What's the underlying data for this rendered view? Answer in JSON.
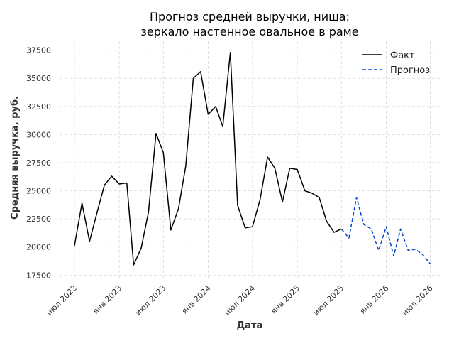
{
  "chart_data": {
    "type": "line",
    "title_lines": [
      "Прогноз средней выручки, ниша:",
      "зеркало настенное овальное в раме"
    ],
    "xlabel": "Дата",
    "ylabel": "Средняя выручка, руб.",
    "xlim": [
      "2022-05-01",
      "2026-08-15"
    ],
    "ylim": [
      17200,
      38300
    ],
    "x_ticks": [
      {
        "date": "2022-07-01",
        "label": "июл 2022"
      },
      {
        "date": "2023-01-01",
        "label": "янв 2023"
      },
      {
        "date": "2023-07-01",
        "label": "июл 2023"
      },
      {
        "date": "2024-01-01",
        "label": "янв 2024"
      },
      {
        "date": "2024-07-01",
        "label": "июл 2024"
      },
      {
        "date": "2025-01-01",
        "label": "янв 2025"
      },
      {
        "date": "2025-07-01",
        "label": "июл 2025"
      },
      {
        "date": "2026-01-01",
        "label": "янв 2026"
      },
      {
        "date": "2026-07-01",
        "label": "июл 2026"
      }
    ],
    "y_ticks": [
      17500,
      20000,
      22500,
      25000,
      27500,
      30000,
      32500,
      35000,
      37500
    ],
    "grid": true,
    "legend_position": "top-right",
    "series": [
      {
        "name": "Факт",
        "color": "#000000",
        "dash": "solid",
        "points": [
          [
            "2022-07-01",
            20100
          ],
          [
            "2022-08-01",
            23900
          ],
          [
            "2022-09-01",
            20500
          ],
          [
            "2022-10-01",
            23000
          ],
          [
            "2022-11-01",
            25500
          ],
          [
            "2022-12-01",
            26300
          ],
          [
            "2023-01-01",
            25600
          ],
          [
            "2023-02-01",
            25700
          ],
          [
            "2023-03-01",
            18400
          ],
          [
            "2023-04-01",
            19900
          ],
          [
            "2023-05-01",
            23100
          ],
          [
            "2023-06-01",
            30100
          ],
          [
            "2023-07-01",
            28400
          ],
          [
            "2023-08-01",
            21500
          ],
          [
            "2023-09-01",
            23400
          ],
          [
            "2023-10-01",
            27200
          ],
          [
            "2023-11-01",
            35000
          ],
          [
            "2023-12-01",
            35600
          ],
          [
            "2024-01-01",
            31800
          ],
          [
            "2024-02-01",
            32500
          ],
          [
            "2024-03-01",
            30700
          ],
          [
            "2024-04-01",
            37300
          ],
          [
            "2024-05-01",
            23700
          ],
          [
            "2024-06-01",
            21700
          ],
          [
            "2024-07-01",
            21800
          ],
          [
            "2024-08-01",
            24200
          ],
          [
            "2024-09-01",
            28000
          ],
          [
            "2024-10-01",
            27000
          ],
          [
            "2024-11-01",
            24000
          ],
          [
            "2024-12-01",
            27000
          ],
          [
            "2025-01-01",
            26900
          ],
          [
            "2025-02-01",
            25000
          ],
          [
            "2025-03-01",
            24800
          ],
          [
            "2025-04-01",
            24400
          ],
          [
            "2025-05-01",
            22300
          ],
          [
            "2025-06-01",
            21300
          ],
          [
            "2025-07-01",
            21600
          ]
        ]
      },
      {
        "name": "Прогноз",
        "color": "#0047cc",
        "dash": "dashed",
        "points": [
          [
            "2025-07-01",
            21600
          ],
          [
            "2025-08-01",
            20800
          ],
          [
            "2025-09-01",
            24400
          ],
          [
            "2025-10-01",
            22000
          ],
          [
            "2025-11-01",
            21600
          ],
          [
            "2025-12-01",
            19700
          ],
          [
            "2026-01-01",
            21800
          ],
          [
            "2026-02-01",
            19200
          ],
          [
            "2026-03-01",
            21600
          ],
          [
            "2026-04-01",
            19700
          ],
          [
            "2026-05-01",
            19800
          ],
          [
            "2026-06-01",
            19300
          ],
          [
            "2026-07-01",
            18500
          ]
        ]
      }
    ]
  }
}
